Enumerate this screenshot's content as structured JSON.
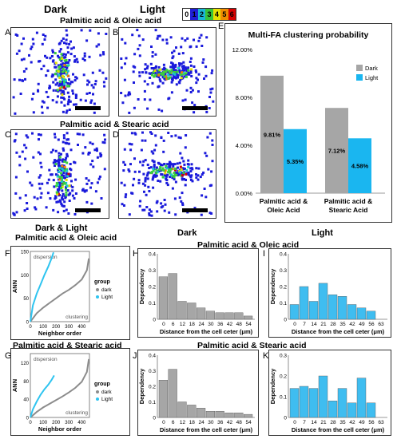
{
  "headers": {
    "dark": "Dark",
    "light": "Light",
    "dark_light": "Dark & Light",
    "pair1": "Palmitic acid & Oleic acid",
    "pair2": "Palmitic acid & Stearic acid"
  },
  "panel_letters": [
    "A",
    "B",
    "C",
    "D",
    "E",
    "F",
    "G",
    "H",
    "I",
    "J",
    "K"
  ],
  "colorbar": {
    "labels": [
      "0",
      "1",
      "2",
      "3",
      "4",
      "5",
      "6"
    ],
    "colors": [
      "#ffffff",
      "#1f1fd6",
      "#19b5d6",
      "#37c23a",
      "#e8e000",
      "#f08c00",
      "#d60000"
    ]
  },
  "scatter_colors": {
    "blue": "#1a1adb",
    "green": "#3ad13a",
    "cyan": "#18c7cf",
    "yellow": "#e6e000",
    "orange": "#f08400",
    "red": "#d40000"
  },
  "chart_data": [
    {
      "id": "E",
      "type": "bar",
      "title": "Multi-FA clustering probability",
      "categories": [
        "Palmitic acid &\nOleic Acid",
        "Palmitic acid &\nStearic Acid"
      ],
      "series": [
        {
          "name": "Dark",
          "values": [
            9.81,
            7.12
          ],
          "labels": [
            "9.81%",
            "7.12%"
          ],
          "color": "#a6a6a6"
        },
        {
          "name": "Light",
          "values": [
            5.35,
            4.58
          ],
          "labels": [
            "5.35%",
            "4.58%"
          ],
          "color": "#1ab6f0"
        }
      ],
      "yticks": [
        "0.00%",
        "4.00%",
        "8.00%",
        "12.00%"
      ],
      "ylim": [
        0,
        12
      ],
      "legend": "top-right"
    },
    {
      "id": "F",
      "type": "line",
      "xlabel": "Neighbor order",
      "ylabel": "ANN",
      "xlim": [
        0,
        460
      ],
      "ylim": [
        0,
        150
      ],
      "xticks": [
        0,
        100,
        200,
        300,
        400
      ],
      "yticks": [
        0,
        50,
        100,
        150
      ],
      "annotations": [
        "dispersion",
        "clustering"
      ],
      "legend_title": "group",
      "series": [
        {
          "name": "dark",
          "color": "#8c8c8c",
          "x": [
            0,
            50,
            100,
            150,
            200,
            250,
            300,
            350,
            400,
            440,
            455
          ],
          "y": [
            0,
            18,
            30,
            40,
            50,
            60,
            68,
            78,
            90,
            110,
            135
          ]
        },
        {
          "name": "Light",
          "color": "#2ec4f0",
          "x": [
            0,
            20,
            50,
            80,
            110,
            140,
            165,
            180
          ],
          "y": [
            0,
            35,
            60,
            80,
            100,
            118,
            135,
            148
          ]
        }
      ]
    },
    {
      "id": "G",
      "type": "line",
      "xlabel": "Neighbor order",
      "ylabel": "ANN",
      "xlim": [
        0,
        460
      ],
      "ylim": [
        0,
        140
      ],
      "xticks": [
        0,
        100,
        200,
        300,
        400
      ],
      "yticks": [
        0,
        40,
        80,
        120
      ],
      "annotations": [
        "dispersion",
        "clustering"
      ],
      "legend_title": "group",
      "series": [
        {
          "name": "dark",
          "color": "#8c8c8c",
          "x": [
            0,
            50,
            100,
            150,
            200,
            250,
            300,
            350,
            400,
            440,
            455
          ],
          "y": [
            0,
            12,
            22,
            30,
            38,
            46,
            55,
            65,
            78,
            100,
            128
          ]
        },
        {
          "name": "Light",
          "color": "#2ec4f0",
          "x": [
            0,
            20,
            50,
            80,
            110,
            140,
            165,
            185
          ],
          "y": [
            0,
            18,
            35,
            50,
            62,
            72,
            82,
            92
          ]
        }
      ]
    },
    {
      "id": "H",
      "type": "bar",
      "color": "#a6a6a6",
      "xlabel": "Distance from the cell ceter (μm)",
      "ylabel": "Dependency",
      "ylim": [
        0,
        0.4
      ],
      "yticks": [
        "0",
        "0.1",
        "0.2",
        "0.3",
        "0.4"
      ],
      "categories": [
        "0",
        "6",
        "12",
        "18",
        "24",
        "30",
        "36",
        "42",
        "48",
        "54"
      ],
      "values": [
        0.26,
        0.28,
        0.11,
        0.1,
        0.07,
        0.05,
        0.04,
        0.04,
        0.04,
        0.02
      ]
    },
    {
      "id": "I",
      "type": "bar",
      "color": "#3fbdf0",
      "xlabel": "Distance from the cell ceter (μm)",
      "ylabel": "Dependency",
      "ylim": [
        0,
        0.4
      ],
      "yticks": [
        "0",
        "0.1",
        "0.2",
        "0.3",
        "0.4"
      ],
      "categories": [
        "0",
        "7",
        "14",
        "21",
        "28",
        "35",
        "42",
        "49",
        "56",
        "63"
      ],
      "values": [
        0.09,
        0.2,
        0.11,
        0.22,
        0.15,
        0.14,
        0.09,
        0.07,
        0.05,
        0.0
      ]
    },
    {
      "id": "J",
      "type": "bar",
      "color": "#a6a6a6",
      "xlabel": "Distance from the cell ceter (μm)",
      "ylabel": "Dependency",
      "ylim": [
        0,
        0.4
      ],
      "yticks": [
        "0",
        "0.1",
        "0.2",
        "0.3",
        "0.4"
      ],
      "categories": [
        "0",
        "6",
        "12",
        "18",
        "24",
        "30",
        "36",
        "42",
        "48",
        "54"
      ],
      "values": [
        0.24,
        0.31,
        0.1,
        0.08,
        0.06,
        0.04,
        0.04,
        0.03,
        0.03,
        0.02
      ]
    },
    {
      "id": "K",
      "type": "bar",
      "color": "#3fbdf0",
      "xlabel": "Distance from the cell ceter (μm)",
      "ylabel": "Dependency",
      "ylim": [
        0,
        0.3
      ],
      "yticks": [
        "0",
        "0.1",
        "0.2",
        "0.3"
      ],
      "categories": [
        "0",
        "7",
        "14",
        "21",
        "28",
        "35",
        "42",
        "49",
        "56",
        "63"
      ],
      "values": [
        0.14,
        0.15,
        0.14,
        0.2,
        0.08,
        0.14,
        0.07,
        0.19,
        0.07,
        0.0
      ]
    }
  ]
}
